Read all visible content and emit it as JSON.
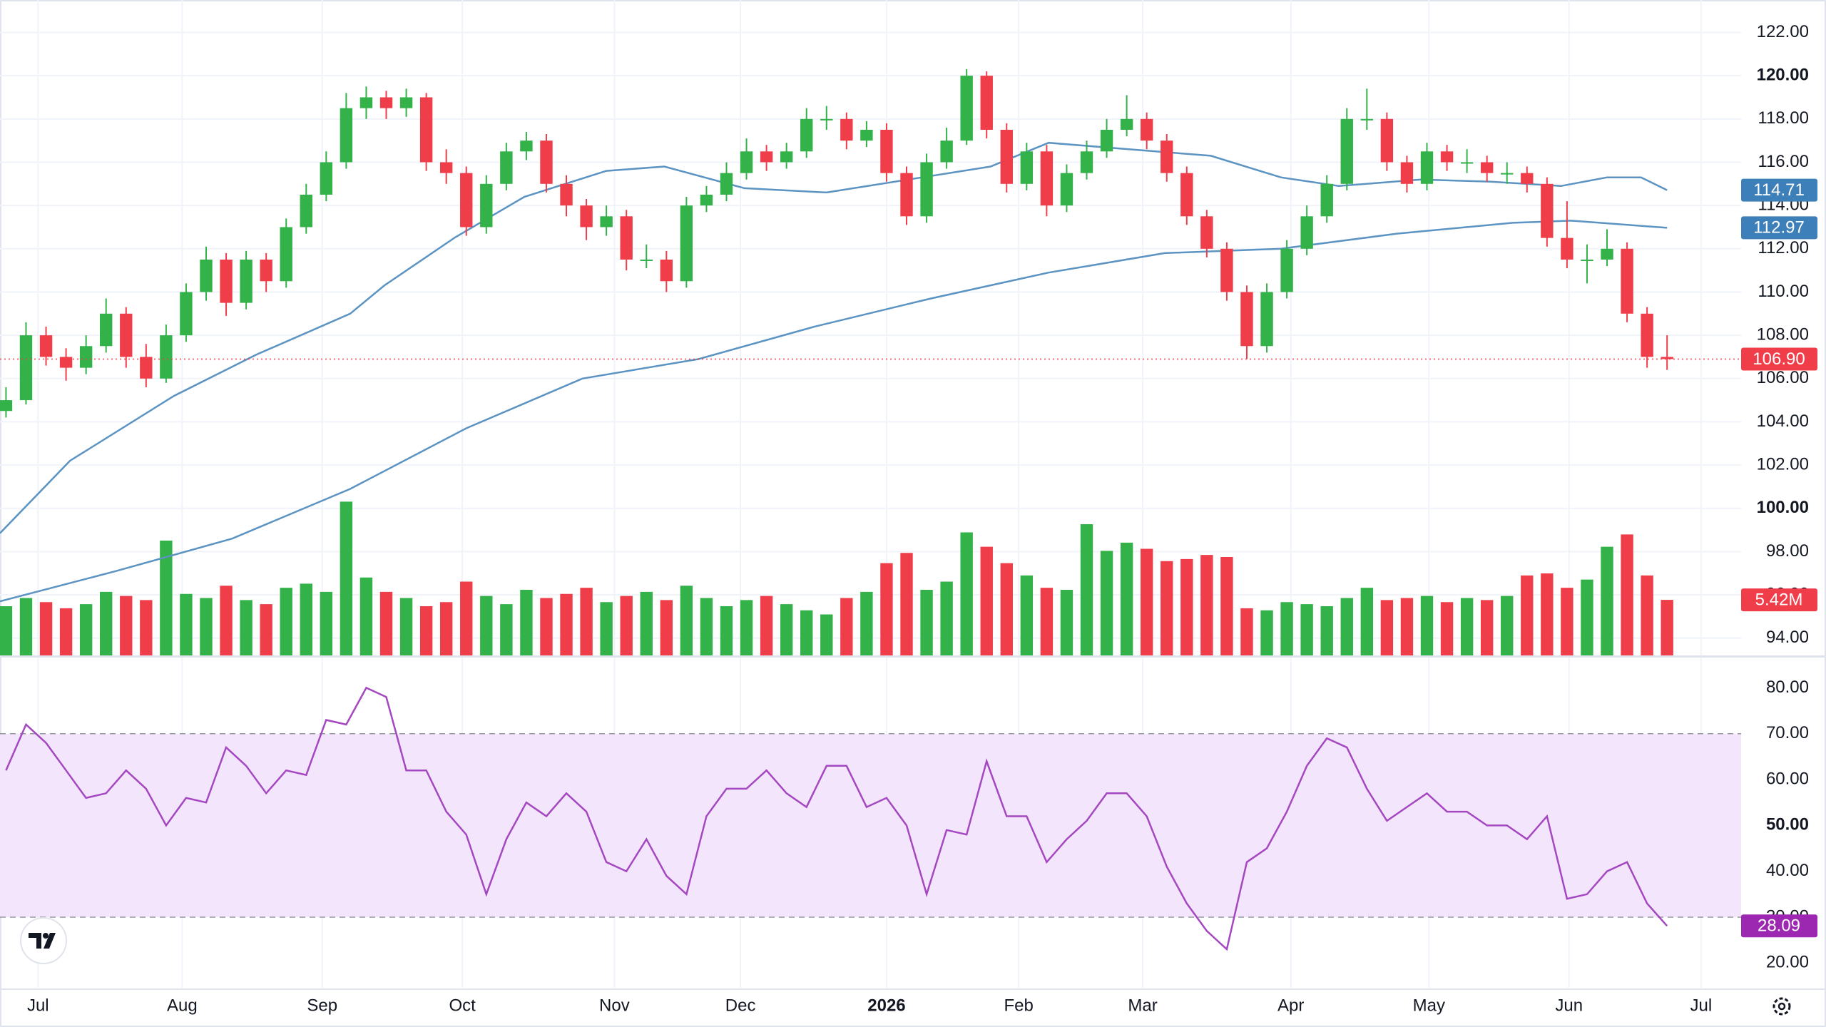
{
  "chart_data": {
    "type": "candlestick",
    "xlim": [
      -0.3,
      86.7
    ],
    "xticks": [
      {
        "value": 1.6,
        "label": "Jul"
      },
      {
        "value": 8.8,
        "label": "Aug"
      },
      {
        "value": 15.8,
        "label": "Sep"
      },
      {
        "value": 22.8,
        "label": "Oct"
      },
      {
        "value": 30.4,
        "label": "Nov"
      },
      {
        "value": 36.7,
        "label": "Dec"
      },
      {
        "value": 44.0,
        "label": "2026",
        "bold": true
      },
      {
        "value": 50.6,
        "label": "Feb"
      },
      {
        "value": 56.8,
        "label": "Mar"
      },
      {
        "value": 64.2,
        "label": "Apr"
      },
      {
        "value": 71.1,
        "label": "May"
      },
      {
        "value": 78.1,
        "label": "Jun"
      },
      {
        "value": 84.7,
        "label": "Jul"
      }
    ],
    "ylim": [
      93.2,
      123.5
    ],
    "yticks": [
      {
        "value": 94,
        "label": "94.00"
      },
      {
        "value": 96,
        "label": "96.00"
      },
      {
        "value": 98,
        "label": "98.00"
      },
      {
        "value": 100,
        "label": "100.00",
        "bold": true
      },
      {
        "value": 102,
        "label": "102.00"
      },
      {
        "value": 104,
        "label": "104.00"
      },
      {
        "value": 106,
        "label": "106.00"
      },
      {
        "value": 108,
        "label": "108.00"
      },
      {
        "value": 110,
        "label": "110.00"
      },
      {
        "value": 112,
        "label": "112.00"
      },
      {
        "value": 114,
        "label": "114.00"
      },
      {
        "value": 116,
        "label": "116.00"
      },
      {
        "value": 118,
        "label": "118.00"
      },
      {
        "value": 120,
        "label": "120.00",
        "bold": true
      },
      {
        "value": 122,
        "label": "122.00"
      }
    ],
    "grid": true,
    "up_color": "#33b249",
    "down_color": "#ef3e4a",
    "last_price_label": "106.90",
    "ohlc": [
      [
        104.5,
        105.6,
        104.2,
        105
      ],
      [
        105,
        108.6,
        104.8,
        108
      ],
      [
        108,
        108.4,
        106.6,
        107
      ],
      [
        107,
        107.4,
        105.9,
        106.5
      ],
      [
        106.5,
        108,
        106.2,
        107.5
      ],
      [
        107.5,
        109.7,
        107.2,
        109
      ],
      [
        109,
        109.3,
        106.5,
        107
      ],
      [
        107,
        107.6,
        105.6,
        106
      ],
      [
        106,
        108.5,
        105.8,
        108
      ],
      [
        108,
        110.4,
        107.7,
        110
      ],
      [
        110,
        112.1,
        109.6,
        111.5
      ],
      [
        111.5,
        111.8,
        108.9,
        109.5
      ],
      [
        109.5,
        111.9,
        109.2,
        111.5
      ],
      [
        111.5,
        111.8,
        110,
        110.5
      ],
      [
        110.5,
        113.4,
        110.2,
        113
      ],
      [
        113,
        115,
        112.7,
        114.5
      ],
      [
        114.5,
        116.5,
        114.2,
        116
      ],
      [
        116,
        119.2,
        115.7,
        118.5
      ],
      [
        118.5,
        119.5,
        118,
        119
      ],
      [
        119,
        119.3,
        118,
        118.5
      ],
      [
        118.5,
        119.4,
        118.1,
        119
      ],
      [
        119,
        119.2,
        115.6,
        116
      ],
      [
        116,
        116.6,
        115,
        115.5
      ],
      [
        115.5,
        115.8,
        112.6,
        113
      ],
      [
        113,
        115.4,
        112.7,
        115
      ],
      [
        115,
        116.9,
        114.7,
        116.5
      ],
      [
        116.5,
        117.4,
        116.1,
        117
      ],
      [
        117,
        117.3,
        114.6,
        115
      ],
      [
        115,
        115.4,
        113.5,
        114
      ],
      [
        114,
        114.3,
        112.4,
        113
      ],
      [
        113,
        114,
        112.6,
        113.5
      ],
      [
        113.5,
        113.8,
        111,
        111.5
      ],
      [
        111.5,
        112.2,
        111.1,
        111.5
      ],
      [
        111.5,
        111.9,
        110,
        110.5
      ],
      [
        110.5,
        114.4,
        110.2,
        114
      ],
      [
        114,
        114.9,
        113.7,
        114.5
      ],
      [
        114.5,
        116,
        114.2,
        115.5
      ],
      [
        115.5,
        117.1,
        115.2,
        116.5
      ],
      [
        116.5,
        116.8,
        115.6,
        116
      ],
      [
        116,
        116.9,
        115.7,
        116.5
      ],
      [
        116.5,
        118.5,
        116.2,
        118
      ],
      [
        118,
        118.6,
        117.5,
        118
      ],
      [
        118,
        118.3,
        116.6,
        117
      ],
      [
        117,
        117.9,
        116.7,
        117.5
      ],
      [
        117.5,
        117.8,
        115.1,
        115.5
      ],
      [
        115.5,
        115.8,
        113.1,
        113.5
      ],
      [
        113.5,
        116.4,
        113.2,
        116
      ],
      [
        116,
        117.6,
        115.7,
        117
      ],
      [
        117,
        120.3,
        116.8,
        120
      ],
      [
        120,
        120.2,
        117.1,
        117.5
      ],
      [
        117.5,
        117.8,
        114.6,
        115
      ],
      [
        115,
        116.9,
        114.7,
        116.5
      ],
      [
        116.5,
        116.8,
        113.5,
        114
      ],
      [
        114,
        115.9,
        113.7,
        115.5
      ],
      [
        115.5,
        117,
        115.2,
        116.5
      ],
      [
        116.5,
        118,
        116.2,
        117.5
      ],
      [
        117.5,
        119.1,
        117.2,
        118
      ],
      [
        118,
        118.3,
        116.6,
        117
      ],
      [
        117,
        117.3,
        115.1,
        115.5
      ],
      [
        115.5,
        115.8,
        113.1,
        113.5
      ],
      [
        113.5,
        113.8,
        111.6,
        112
      ],
      [
        112,
        112.3,
        109.6,
        110
      ],
      [
        110,
        110.3,
        106.9,
        107.5
      ],
      [
        107.5,
        110.4,
        107.2,
        110
      ],
      [
        110,
        112.4,
        109.7,
        112
      ],
      [
        112,
        114,
        111.7,
        113.5
      ],
      [
        113.5,
        115.4,
        113.2,
        115
      ],
      [
        115,
        118.5,
        114.7,
        118
      ],
      [
        118,
        119.4,
        117.5,
        118
      ],
      [
        118,
        118.3,
        115.6,
        116
      ],
      [
        116,
        116.3,
        114.6,
        115
      ],
      [
        115,
        116.9,
        114.7,
        116.5
      ],
      [
        116.5,
        116.8,
        115.6,
        116
      ],
      [
        116,
        116.6,
        115.5,
        116
      ],
      [
        116,
        116.3,
        115.1,
        115.5
      ],
      [
        115.5,
        116,
        115,
        115.5
      ],
      [
        115.5,
        115.8,
        114.6,
        115
      ],
      [
        115,
        115.3,
        112.1,
        112.5
      ],
      [
        112.5,
        114.2,
        111.1,
        111.5
      ],
      [
        111.5,
        112.2,
        110.4,
        111.5
      ],
      [
        111.5,
        112.9,
        111.2,
        112
      ],
      [
        112,
        112.3,
        108.6,
        109
      ],
      [
        109,
        109.3,
        106.5,
        107
      ],
      [
        107,
        108,
        106.4,
        106.9
      ]
    ],
    "moving_averages": [
      {
        "color": "#5b93c2",
        "badge_color": "#3d7fb8",
        "last_value_label": "114.71",
        "x": [
          -0.3,
          3.2,
          8.4,
          12.5,
          17.2,
          18.9,
          22.4,
          25.9,
          30,
          32.9,
          36.9,
          41,
          45.1,
          49.2,
          52.1,
          56.1,
          60.2,
          63.7,
          66.6,
          70.7,
          74.2,
          77.7,
          80,
          81.7,
          83
        ],
        "values": [
          98.85,
          102.2,
          105.2,
          107.1,
          109,
          110.3,
          112.5,
          114.4,
          115.6,
          115.8,
          114.8,
          114.6,
          115.2,
          115.8,
          116.9,
          116.6,
          116.3,
          115.3,
          114.9,
          115.2,
          115.1,
          114.9,
          115.3,
          115.3,
          114.71
        ]
      },
      {
        "color": "#5b93c2",
        "badge_color": "#3d7fb8",
        "last_value_label": "112.97",
        "x": [
          -0.3,
          5.5,
          11.3,
          17.2,
          23,
          28.8,
          34.6,
          40.4,
          46.2,
          52.1,
          57.9,
          63.7,
          69.5,
          75.3,
          78.2,
          83
        ],
        "values": [
          95.7,
          97.1,
          98.6,
          100.9,
          103.7,
          106,
          106.9,
          108.4,
          109.7,
          110.9,
          111.8,
          112,
          112.7,
          113.2,
          113.3,
          112.97
        ]
      }
    ],
    "volume": {
      "ylim": [
        0,
        16
      ],
      "last_value_label": "5.42M",
      "values": [
        4.8,
        5.6,
        5.2,
        4.6,
        5.0,
        6.2,
        5.8,
        5.4,
        11.2,
        6.0,
        5.6,
        6.8,
        5.4,
        5.0,
        6.6,
        7.0,
        6.2,
        15.0,
        7.6,
        6.2,
        5.6,
        4.8,
        5.2,
        7.2,
        5.8,
        5.0,
        6.4,
        5.6,
        6.0,
        6.6,
        5.2,
        5.8,
        6.2,
        5.4,
        6.8,
        5.6,
        4.8,
        5.4,
        5.8,
        5.0,
        4.4,
        4.0,
        5.6,
        6.2,
        9.0,
        10.0,
        6.4,
        7.2,
        12.0,
        10.6,
        9.0,
        7.8,
        6.6,
        6.4,
        12.8,
        10.2,
        11.0,
        10.4,
        9.2,
        9.4,
        9.8,
        9.6,
        4.6,
        4.4,
        5.2,
        5.0,
        4.8,
        5.6,
        6.6,
        5.4,
        5.6,
        5.8,
        5.2,
        5.6,
        5.4,
        5.8,
        7.8,
        8.0,
        6.6,
        7.4,
        10.6,
        11.8,
        7.8,
        5.42
      ]
    },
    "rsi": {
      "ylim": [
        14.6,
        86.6
      ],
      "color": "#a447c0",
      "badge_color": "#9c27b0",
      "band_fill": "#f3e6fc",
      "bands": [
        30,
        70
      ],
      "yticks": [
        {
          "value": 20,
          "label": "20.00"
        },
        {
          "value": 30,
          "label": "30.00"
        },
        {
          "value": 40,
          "label": "40.00"
        },
        {
          "value": 50,
          "label": "50.00",
          "bold": true
        },
        {
          "value": 60,
          "label": "60.00"
        },
        {
          "value": 70,
          "label": "70.00"
        },
        {
          "value": 80,
          "label": "80.00"
        }
      ],
      "values": [
        62,
        72,
        68,
        62,
        56,
        57,
        62,
        58,
        50,
        56,
        55,
        67,
        63,
        57,
        62,
        61,
        73,
        72,
        80,
        78,
        62,
        62,
        53,
        48,
        35,
        47,
        55,
        52,
        57,
        53,
        42,
        40,
        47,
        39,
        35,
        52,
        58,
        58,
        62,
        57,
        54,
        63,
        63,
        54,
        56,
        50,
        35,
        49,
        48,
        64,
        52,
        52,
        42,
        47,
        51,
        57,
        57,
        52,
        41,
        33,
        27,
        23,
        42,
        45,
        53,
        63,
        69,
        67,
        58,
        51,
        54,
        57,
        53,
        53,
        50,
        50,
        47,
        52,
        34,
        35,
        40,
        42,
        33,
        28.09
      ]
    }
  }
}
